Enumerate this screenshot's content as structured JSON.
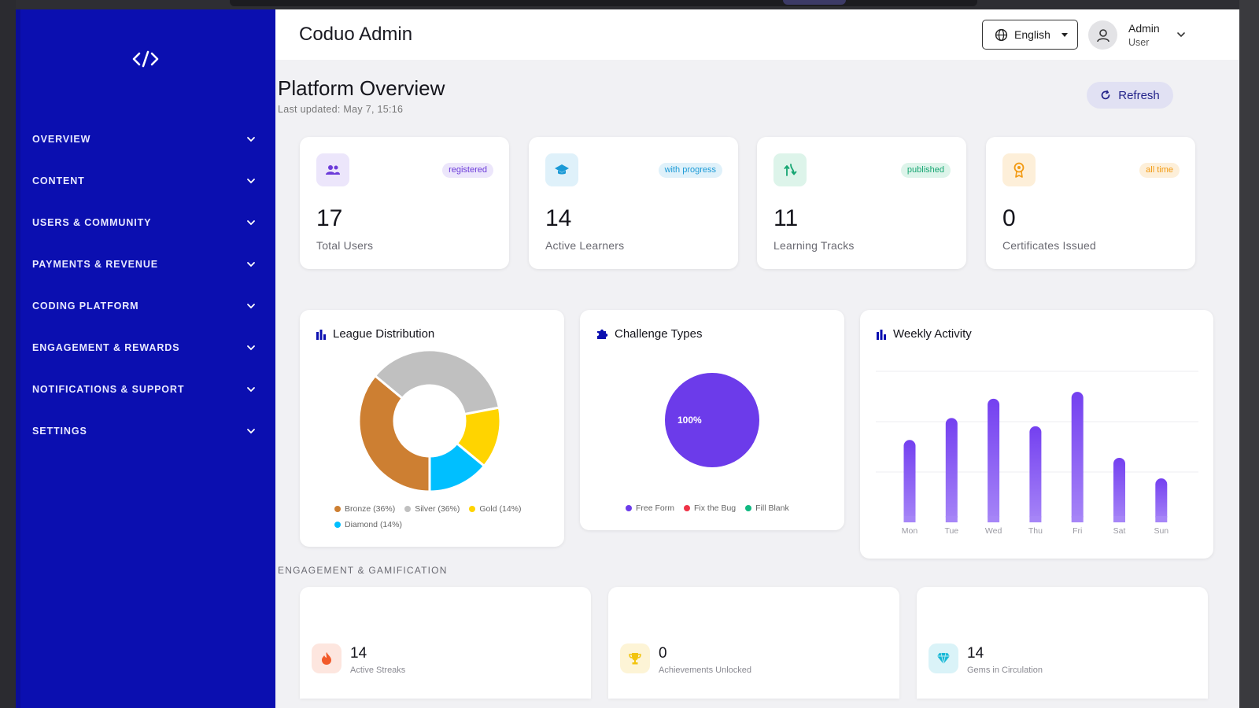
{
  "app": {
    "title": "Coduo Admin"
  },
  "sidebar": {
    "logo_icon": "code-brackets-icon",
    "items": [
      {
        "label": "OVERVIEW"
      },
      {
        "label": "CONTENT"
      },
      {
        "label": "USERS & COMMUNITY"
      },
      {
        "label": "PAYMENTS & REVENUE"
      },
      {
        "label": "CODING PLATFORM"
      },
      {
        "label": "ENGAGEMENT & REWARDS"
      },
      {
        "label": "NOTIFICATIONS & SUPPORT"
      },
      {
        "label": "SETTINGS"
      }
    ]
  },
  "header": {
    "language": "English",
    "user_name": "Admin",
    "user_role": "User"
  },
  "page": {
    "title": "Platform Overview",
    "last_updated": "Last updated: May 7, 15:16",
    "refresh_label": "Refresh"
  },
  "stats": [
    {
      "value": "17",
      "label": "Total Users",
      "badge": "registered",
      "icon": "users-icon",
      "color": "#6c3bd9"
    },
    {
      "value": "14",
      "label": "Active Learners",
      "badge": "with progress",
      "icon": "graduation-cap-icon",
      "color": "#1c9ad6"
    },
    {
      "value": "11",
      "label": "Learning Tracks",
      "badge": "published",
      "icon": "route-icon",
      "color": "#16a572"
    },
    {
      "value": "0",
      "label": "Certificates Issued",
      "badge": "all time",
      "icon": "award-icon",
      "color": "#f29a12"
    }
  ],
  "charts": {
    "league": {
      "title": "League Distribution",
      "legend": [
        "Bronze (36%)",
        "Silver (36%)",
        "Gold (14%)",
        "Diamond (14%)"
      ]
    },
    "challenge": {
      "title": "Challenge Types",
      "center_label": "100%",
      "legend": [
        "Free Form",
        "Fix the Bug",
        "Fill Blank"
      ]
    },
    "weekly": {
      "title": "Weekly Activity"
    }
  },
  "chart_data": [
    {
      "type": "pie",
      "title": "League Distribution",
      "categories": [
        "Bronze",
        "Silver",
        "Gold",
        "Diamond"
      ],
      "values": [
        36,
        36,
        14,
        14
      ],
      "colors": [
        "#cd7f32",
        "#c0c0c0",
        "#ffd400",
        "#00bfff"
      ]
    },
    {
      "type": "pie",
      "title": "Challenge Types",
      "categories": [
        "Free Form",
        "Fix the Bug",
        "Fill Blank"
      ],
      "values": [
        100,
        0,
        0
      ],
      "colors": [
        "#6c3bea",
        "#ef3347",
        "#10b981"
      ]
    },
    {
      "type": "bar",
      "title": "Weekly Activity",
      "categories": [
        "Mon",
        "Tue",
        "Wed",
        "Thu",
        "Fri",
        "Sat",
        "Sun"
      ],
      "values": [
        6.0,
        7.6,
        9.0,
        7.0,
        9.5,
        4.7,
        3.2
      ],
      "ylim": [
        0,
        11
      ],
      "grid": true,
      "color": "#7c4ff0"
    }
  ],
  "engagement": {
    "section_label": "ENGAGEMENT & GAMIFICATION",
    "cards": [
      {
        "value": "14",
        "label": "Active Streaks",
        "icon": "flame-icon",
        "color": "#f25a2a"
      },
      {
        "value": "0",
        "label": "Achievements Unlocked",
        "icon": "trophy-icon",
        "color": "#f2c40f"
      },
      {
        "value": "14",
        "label": "Gems in Circulation",
        "icon": "gem-icon",
        "color": "#16b8d6"
      }
    ]
  }
}
